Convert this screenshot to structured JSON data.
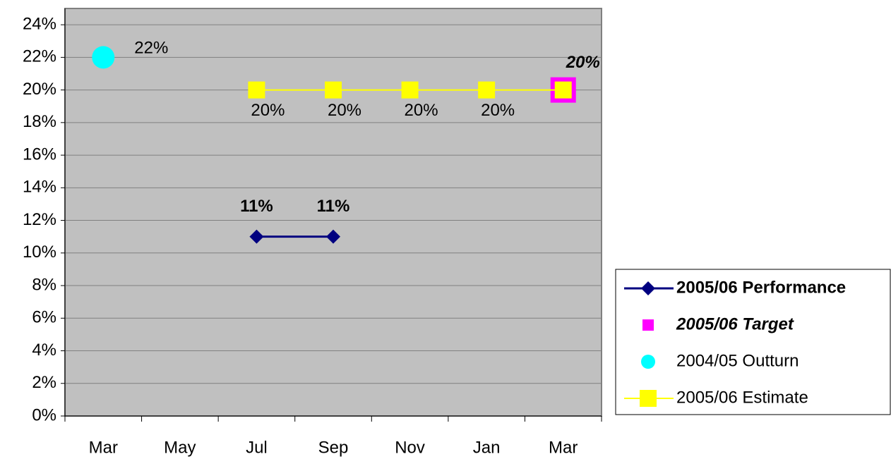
{
  "chart_data": {
    "type": "line",
    "categories": [
      "Mar",
      "May",
      "Jul",
      "Sep",
      "Nov",
      "Jan",
      "Mar"
    ],
    "ylim": [
      0,
      25
    ],
    "yticks": [
      {
        "value": 0,
        "label": "0%"
      },
      {
        "value": 2,
        "label": "2%"
      },
      {
        "value": 4,
        "label": "4%"
      },
      {
        "value": 6,
        "label": "6%"
      },
      {
        "value": 8,
        "label": "8%"
      },
      {
        "value": 10,
        "label": "10%"
      },
      {
        "value": 12,
        "label": "12%"
      },
      {
        "value": 14,
        "label": "14%"
      },
      {
        "value": 16,
        "label": "16%"
      },
      {
        "value": 18,
        "label": "18%"
      },
      {
        "value": 20,
        "label": "20%"
      },
      {
        "value": 22,
        "label": "22%"
      },
      {
        "value": 24,
        "label": "24%"
      }
    ],
    "grid": true,
    "legend": "right",
    "series": [
      {
        "name": "2005/06 Performance",
        "color": "#000080",
        "line": true,
        "marker": "diamond",
        "label_position": "above",
        "label_style": "bold",
        "values": [
          null,
          null,
          11,
          11,
          null,
          null,
          null
        ],
        "value_labels": [
          null,
          null,
          "11%",
          "11%",
          null,
          null,
          null
        ]
      },
      {
        "name": "2005/06 Target",
        "color": "#ff00ff",
        "line": false,
        "marker": "square",
        "label_position": "above",
        "label_style": "bold-italic",
        "values": [
          null,
          null,
          null,
          null,
          null,
          null,
          20
        ],
        "value_labels": [
          null,
          null,
          null,
          null,
          null,
          null,
          "20%"
        ]
      },
      {
        "name": "2004/05 Outturn",
        "color": "#00ffff",
        "line": false,
        "marker": "circle",
        "label_position": "right",
        "label_style": "normal",
        "values": [
          22,
          null,
          null,
          null,
          null,
          null,
          null
        ],
        "value_labels": [
          "22%",
          null,
          null,
          null,
          null,
          null,
          null
        ]
      },
      {
        "name": "2005/06 Estimate",
        "color": "#ffff00",
        "line": true,
        "marker": "square",
        "label_position": "below",
        "label_style": "normal",
        "values": [
          null,
          null,
          20,
          20,
          20,
          20,
          20
        ],
        "value_labels": [
          null,
          null,
          "20%",
          "20%",
          "20%",
          "20%",
          null
        ]
      }
    ]
  }
}
